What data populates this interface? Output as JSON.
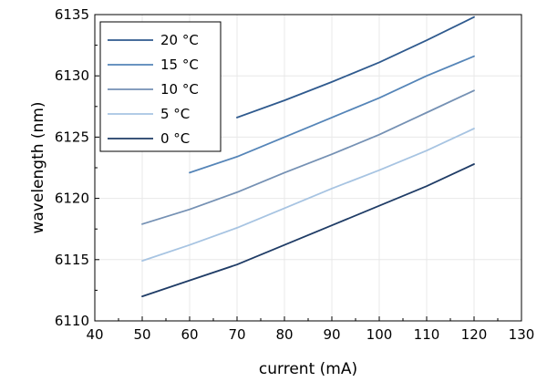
{
  "chart_data": {
    "type": "line",
    "xlabel": "current (mA)",
    "ylabel": "wavelength (nm)",
    "xlim": [
      40,
      130
    ],
    "ylim": [
      6110,
      6135
    ],
    "xticks": [
      40,
      50,
      60,
      70,
      80,
      90,
      100,
      110,
      120,
      130
    ],
    "yticks": [
      6110,
      6115,
      6120,
      6125,
      6130,
      6135
    ],
    "grid": true,
    "legend": "top-left",
    "series": [
      {
        "name": "20 °C",
        "color": "#2f5a8e",
        "x": [
          70,
          80,
          90,
          100,
          110,
          120
        ],
        "y": [
          6126.6,
          6128.0,
          6129.5,
          6131.1,
          6132.9,
          6134.8
        ]
      },
      {
        "name": "15 °C",
        "color": "#5585b8",
        "x": [
          60,
          70,
          80,
          90,
          100,
          110,
          120
        ],
        "y": [
          6122.1,
          6123.4,
          6125.0,
          6126.6,
          6128.2,
          6130.0,
          6131.6
        ]
      },
      {
        "name": "10 °C",
        "color": "#7591b4",
        "x": [
          50,
          60,
          70,
          80,
          90,
          100,
          110,
          120
        ],
        "y": [
          6117.9,
          6119.1,
          6120.5,
          6122.1,
          6123.6,
          6125.2,
          6127.0,
          6128.8
        ]
      },
      {
        "name": "5 °C",
        "color": "#a7c4e2",
        "x": [
          50,
          60,
          70,
          80,
          90,
          100,
          110,
          120
        ],
        "y": [
          6114.9,
          6116.2,
          6117.6,
          6119.2,
          6120.8,
          6122.3,
          6123.9,
          6125.7
        ]
      },
      {
        "name": "0 °C",
        "color": "#1f3c66",
        "x": [
          50,
          60,
          70,
          80,
          90,
          100,
          110,
          120
        ],
        "y": [
          6112.0,
          6113.3,
          6114.6,
          6116.2,
          6117.8,
          6119.4,
          6121.0,
          6122.8
        ]
      }
    ]
  }
}
